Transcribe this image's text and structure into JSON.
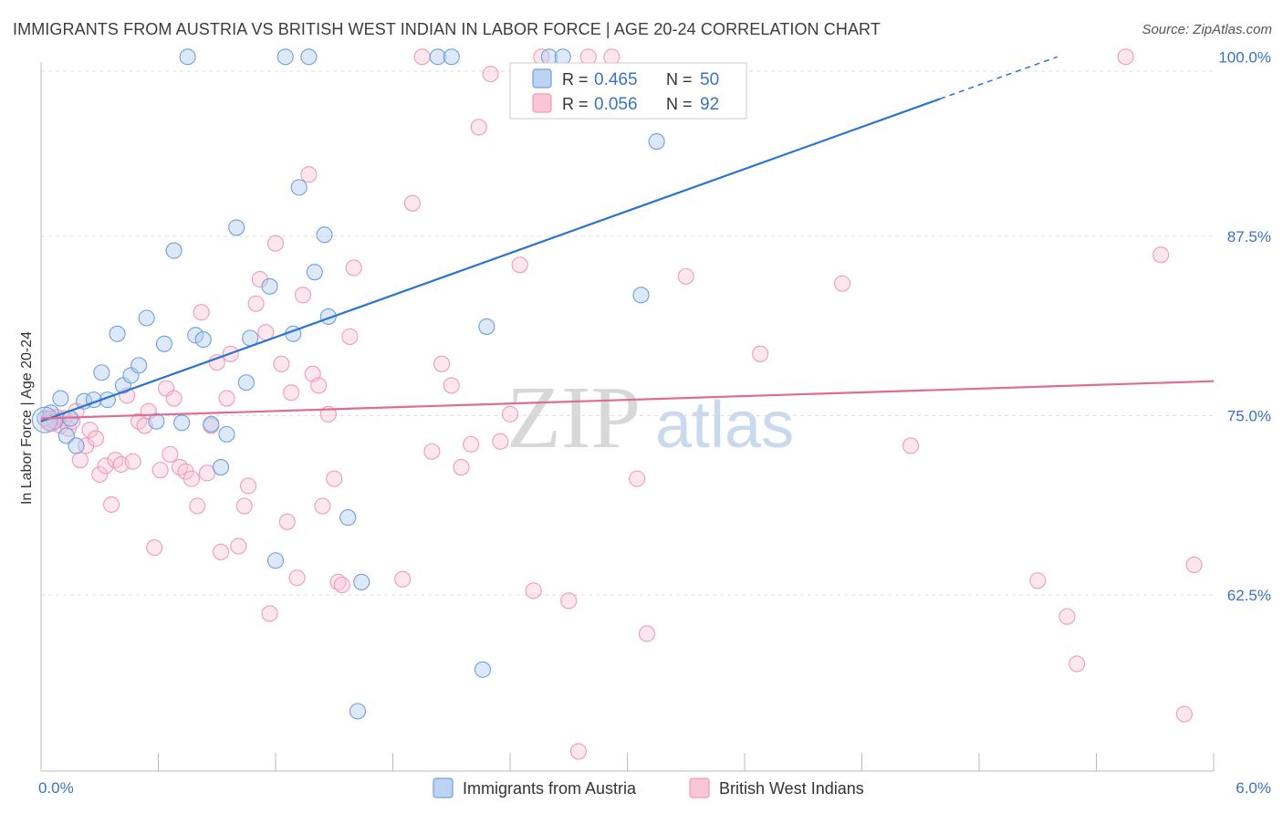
{
  "header": {
    "title": "IMMIGRANTS FROM AUSTRIA VS BRITISH WEST INDIAN IN LABOR FORCE | AGE 20-24 CORRELATION CHART",
    "source": "Source: ZipAtlas.com"
  },
  "watermark": {
    "zip": "ZIP",
    "atlas": "atlas"
  },
  "chart_data": {
    "type": "scatter",
    "title": "IMMIGRANTS FROM AUSTRIA VS BRITISH WEST INDIAN IN LABOR FORCE | AGE 20-24 CORRELATION CHART",
    "xlabel": "",
    "ylabel": "In Labor Force | Age 20-24",
    "xlim": [
      0.0,
      6.0
    ],
    "ylim": [
      51.0,
      101.0
    ],
    "x_tick_labels": [
      "0.0%",
      "6.0%"
    ],
    "y_ticks": [
      62.5,
      75.0,
      87.5,
      100.0
    ],
    "y_tick_labels": [
      "62.5%",
      "75.0%",
      "87.5%",
      "100.0%"
    ],
    "grid": true,
    "legend_position": "top-center",
    "colors": {
      "austria": "#6f9fdf",
      "bwi": "#f29ab6",
      "austria_line": "#2b74cf",
      "bwi_line": "#e06b95"
    },
    "stats": [
      {
        "r_label": "R =",
        "r_value": "0.465",
        "n_label": "N =",
        "n_value": "50"
      },
      {
        "r_label": "R =",
        "r_value": "0.056",
        "n_label": "N =",
        "n_value": "92"
      }
    ],
    "series": [
      {
        "name": "Immigrants from Austria",
        "trend": {
          "x": [
            0.0,
            5.2
          ],
          "y": [
            74.6,
            100.0
          ]
        },
        "points": [
          [
            0.02,
            74.8
          ],
          [
            0.05,
            75.2
          ],
          [
            0.07,
            74.6
          ],
          [
            0.1,
            76.2
          ],
          [
            0.13,
            73.6
          ],
          [
            0.18,
            72.9
          ],
          [
            0.22,
            76.0
          ],
          [
            0.27,
            76.1
          ],
          [
            0.31,
            78.0
          ],
          [
            0.34,
            76.1
          ],
          [
            0.39,
            80.7
          ],
          [
            0.42,
            77.1
          ],
          [
            0.46,
            77.8
          ],
          [
            0.5,
            78.5
          ],
          [
            0.54,
            81.8
          ],
          [
            0.59,
            74.6
          ],
          [
            0.63,
            80.0
          ],
          [
            0.68,
            86.5
          ],
          [
            0.72,
            74.5
          ],
          [
            0.75,
            100.0
          ],
          [
            0.79,
            80.6
          ],
          [
            0.83,
            80.3
          ],
          [
            0.87,
            74.4
          ],
          [
            0.92,
            71.4
          ],
          [
            0.95,
            73.7
          ],
          [
            1.0,
            88.1
          ],
          [
            1.05,
            77.3
          ],
          [
            1.07,
            80.4
          ],
          [
            1.17,
            84.0
          ],
          [
            1.2,
            64.9
          ],
          [
            1.25,
            100.0
          ],
          [
            1.29,
            80.7
          ],
          [
            1.32,
            90.9
          ],
          [
            1.37,
            100.0
          ],
          [
            1.4,
            85.0
          ],
          [
            1.45,
            87.6
          ],
          [
            1.47,
            81.9
          ],
          [
            1.57,
            67.9
          ],
          [
            1.62,
            54.4
          ],
          [
            1.64,
            63.4
          ],
          [
            2.03,
            100.0
          ],
          [
            2.1,
            100.0
          ],
          [
            2.26,
            57.3
          ],
          [
            2.28,
            81.2
          ],
          [
            2.6,
            100.0
          ],
          [
            2.67,
            100.0
          ],
          [
            3.07,
            83.4
          ],
          [
            3.15,
            94.1
          ],
          [
            0.04,
            74.5
          ],
          [
            0.15,
            74.8
          ]
        ]
      },
      {
        "name": "British West Indians",
        "trend": {
          "x": [
            0.0,
            6.0
          ],
          "y": [
            74.8,
            77.4
          ]
        },
        "points": [
          [
            0.05,
            74.5
          ],
          [
            0.08,
            74.9
          ],
          [
            0.1,
            74.3
          ],
          [
            0.12,
            74.8
          ],
          [
            0.14,
            74.1
          ],
          [
            0.16,
            74.6
          ],
          [
            0.18,
            75.3
          ],
          [
            0.2,
            71.9
          ],
          [
            0.23,
            72.9
          ],
          [
            0.25,
            74.0
          ],
          [
            0.28,
            73.4
          ],
          [
            0.3,
            70.9
          ],
          [
            0.33,
            71.5
          ],
          [
            0.36,
            68.8
          ],
          [
            0.38,
            71.9
          ],
          [
            0.41,
            71.6
          ],
          [
            0.44,
            76.4
          ],
          [
            0.47,
            71.8
          ],
          [
            0.5,
            74.6
          ],
          [
            0.53,
            74.3
          ],
          [
            0.55,
            75.3
          ],
          [
            0.58,
            65.8
          ],
          [
            0.61,
            71.2
          ],
          [
            0.64,
            76.9
          ],
          [
            0.66,
            72.3
          ],
          [
            0.68,
            76.2
          ],
          [
            0.71,
            71.4
          ],
          [
            0.74,
            71.1
          ],
          [
            0.77,
            70.6
          ],
          [
            0.8,
            68.7
          ],
          [
            0.82,
            82.2
          ],
          [
            0.85,
            71.0
          ],
          [
            0.87,
            74.3
          ],
          [
            0.9,
            78.7
          ],
          [
            0.92,
            65.5
          ],
          [
            0.95,
            76.2
          ],
          [
            0.97,
            79.3
          ],
          [
            1.01,
            65.9
          ],
          [
            1.04,
            68.7
          ],
          [
            1.06,
            70.1
          ],
          [
            1.1,
            82.8
          ],
          [
            1.12,
            84.5
          ],
          [
            1.15,
            80.8
          ],
          [
            1.17,
            61.2
          ],
          [
            1.2,
            87.0
          ],
          [
            1.23,
            78.6
          ],
          [
            1.26,
            67.6
          ],
          [
            1.28,
            76.6
          ],
          [
            1.31,
            63.7
          ],
          [
            1.34,
            83.4
          ],
          [
            1.37,
            91.8
          ],
          [
            1.39,
            77.9
          ],
          [
            1.42,
            77.1
          ],
          [
            1.44,
            68.7
          ],
          [
            1.47,
            75.1
          ],
          [
            1.5,
            70.6
          ],
          [
            1.52,
            63.4
          ],
          [
            1.54,
            63.2
          ],
          [
            1.58,
            80.5
          ],
          [
            1.6,
            85.3
          ],
          [
            1.85,
            63.6
          ],
          [
            1.9,
            89.8
          ],
          [
            1.95,
            100.0
          ],
          [
            2.0,
            72.5
          ],
          [
            2.05,
            78.6
          ],
          [
            2.1,
            77.1
          ],
          [
            2.15,
            71.4
          ],
          [
            2.2,
            73.0
          ],
          [
            2.24,
            95.1
          ],
          [
            2.3,
            98.8
          ],
          [
            2.35,
            73.2
          ],
          [
            2.4,
            75.1
          ],
          [
            2.45,
            85.5
          ],
          [
            2.52,
            62.8
          ],
          [
            2.56,
            100.0
          ],
          [
            2.7,
            62.1
          ],
          [
            2.75,
            51.6
          ],
          [
            2.8,
            100.0
          ],
          [
            2.92,
            100.0
          ],
          [
            3.05,
            70.6
          ],
          [
            3.1,
            59.8
          ],
          [
            3.3,
            84.7
          ],
          [
            3.68,
            79.3
          ],
          [
            4.1,
            84.2
          ],
          [
            4.45,
            72.9
          ],
          [
            5.1,
            63.5
          ],
          [
            5.25,
            61.0
          ],
          [
            5.3,
            57.7
          ],
          [
            5.55,
            100.0
          ],
          [
            5.73,
            86.2
          ],
          [
            5.85,
            54.2
          ],
          [
            5.9,
            64.6
          ]
        ]
      }
    ]
  }
}
